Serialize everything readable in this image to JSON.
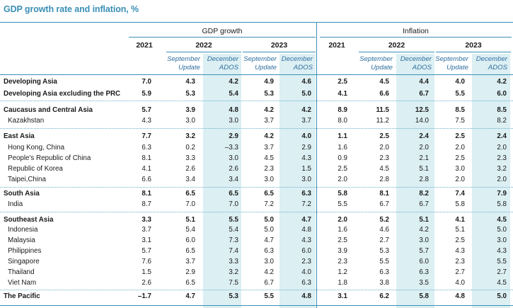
{
  "title": "GDP growth rate and inflation, %",
  "headers": {
    "gdp": "GDP growth",
    "inflation": "Inflation",
    "years": [
      "2021",
      "2022",
      "2023",
      "2021",
      "2022",
      "2023"
    ],
    "sub": [
      {
        "l1": "September",
        "l2": "Update"
      },
      {
        "l1": "December",
        "l2": "ADOS"
      },
      {
        "l1": "September",
        "l2": "Update"
      },
      {
        "l1": "December",
        "l2": "ADOS"
      },
      {
        "l1": "September",
        "l2": "Update"
      },
      {
        "l1": "December",
        "l2": "ADOS"
      },
      {
        "l1": "September",
        "l2": "Update"
      },
      {
        "l1": "December",
        "l2": "ADOS"
      }
    ]
  },
  "rows": [
    {
      "label": "Developing Asia",
      "bold": true,
      "v": [
        "7.0",
        "4.3",
        "4.2",
        "4.9",
        "4.6",
        "2.5",
        "4.5",
        "4.4",
        "4.0",
        "4.2"
      ]
    },
    {
      "label": "Developing Asia excluding the PRC",
      "bold": true,
      "v": [
        "5.9",
        "5.3",
        "5.4",
        "5.3",
        "5.0",
        "4.1",
        "6.6",
        "6.7",
        "5.5",
        "6.0"
      ]
    },
    {
      "label": "Caucasus and Central Asia",
      "bold": true,
      "v": [
        "5.7",
        "3.9",
        "4.8",
        "4.2",
        "4.2",
        "8.9",
        "11.5",
        "12.5",
        "8.5",
        "8.5"
      ]
    },
    {
      "label": "Kazakhstan",
      "bold": false,
      "v": [
        "4.3",
        "3.0",
        "3.0",
        "3.7",
        "3.7",
        "8.0",
        "11.2",
        "14.0",
        "7.5",
        "8.2"
      ]
    },
    {
      "label": "East Asia",
      "bold": true,
      "v": [
        "7.7",
        "3.2",
        "2.9",
        "4.2",
        "4.0",
        "1.1",
        "2.5",
        "2.4",
        "2.5",
        "2.4"
      ]
    },
    {
      "label": "Hong Kong, China",
      "bold": false,
      "v": [
        "6.3",
        "0.2",
        "–3.3",
        "3.7",
        "2.9",
        "1.6",
        "2.0",
        "2.0",
        "2.0",
        "2.0"
      ]
    },
    {
      "label": "People's Republic of China",
      "bold": false,
      "v": [
        "8.1",
        "3.3",
        "3.0",
        "4.5",
        "4.3",
        "0.9",
        "2.3",
        "2.1",
        "2.5",
        "2.3"
      ]
    },
    {
      "label": "Republic of Korea",
      "bold": false,
      "v": [
        "4.1",
        "2.6",
        "2.6",
        "2.3",
        "1.5",
        "2.5",
        "4.5",
        "5.1",
        "3.0",
        "3.2"
      ]
    },
    {
      "label": "Taipei,China",
      "bold": false,
      "v": [
        "6.6",
        "3.4",
        "3.4",
        "3.0",
        "3.0",
        "2.0",
        "2.8",
        "2.8",
        "2.0",
        "2.0"
      ]
    },
    {
      "label": "South Asia",
      "bold": true,
      "v": [
        "8.1",
        "6.5",
        "6.5",
        "6.5",
        "6.3",
        "5.8",
        "8.1",
        "8.2",
        "7.4",
        "7.9"
      ]
    },
    {
      "label": "India",
      "bold": false,
      "v": [
        "8.7",
        "7.0",
        "7.0",
        "7.2",
        "7.2",
        "5.5",
        "6.7",
        "6.7",
        "5.8",
        "5.8"
      ]
    },
    {
      "label": "Southeast Asia",
      "bold": true,
      "v": [
        "3.3",
        "5.1",
        "5.5",
        "5.0",
        "4.7",
        "2.0",
        "5.2",
        "5.1",
        "4.1",
        "4.5"
      ]
    },
    {
      "label": "Indonesia",
      "bold": false,
      "v": [
        "3.7",
        "5.4",
        "5.4",
        "5.0",
        "4.8",
        "1.6",
        "4.6",
        "4.2",
        "5.1",
        "5.0"
      ]
    },
    {
      "label": "Malaysia",
      "bold": false,
      "v": [
        "3.1",
        "6.0",
        "7.3",
        "4.7",
        "4.3",
        "2.5",
        "2.7",
        "3.0",
        "2.5",
        "3.0"
      ]
    },
    {
      "label": "Philippines",
      "bold": false,
      "v": [
        "5.7",
        "6.5",
        "7.4",
        "6.3",
        "6.0",
        "3.9",
        "5.3",
        "5.7",
        "4.3",
        "4.3"
      ]
    },
    {
      "label": "Singapore",
      "bold": false,
      "v": [
        "7.6",
        "3.7",
        "3.3",
        "3.0",
        "2.3",
        "2.3",
        "5.5",
        "6.0",
        "2.3",
        "5.5"
      ]
    },
    {
      "label": "Thailand",
      "bold": false,
      "v": [
        "1.5",
        "2.9",
        "3.2",
        "4.2",
        "4.0",
        "1.2",
        "6.3",
        "6.3",
        "2.7",
        "2.7"
      ]
    },
    {
      "label": "Viet Nam",
      "bold": false,
      "v": [
        "2.6",
        "6.5",
        "7.5",
        "6.7",
        "6.3",
        "1.8",
        "3.8",
        "3.5",
        "4.0",
        "4.5"
      ]
    },
    {
      "label": "The Pacific",
      "bold": true,
      "v": [
        "–1.7",
        "4.7",
        "5.3",
        "5.5",
        "4.8",
        "3.1",
        "6.2",
        "5.8",
        "4.8",
        "5.0"
      ]
    }
  ],
  "colors": {
    "accent": "#3a8fb5",
    "shade": "#dceff3",
    "sub_text": "#2f6fa0"
  }
}
